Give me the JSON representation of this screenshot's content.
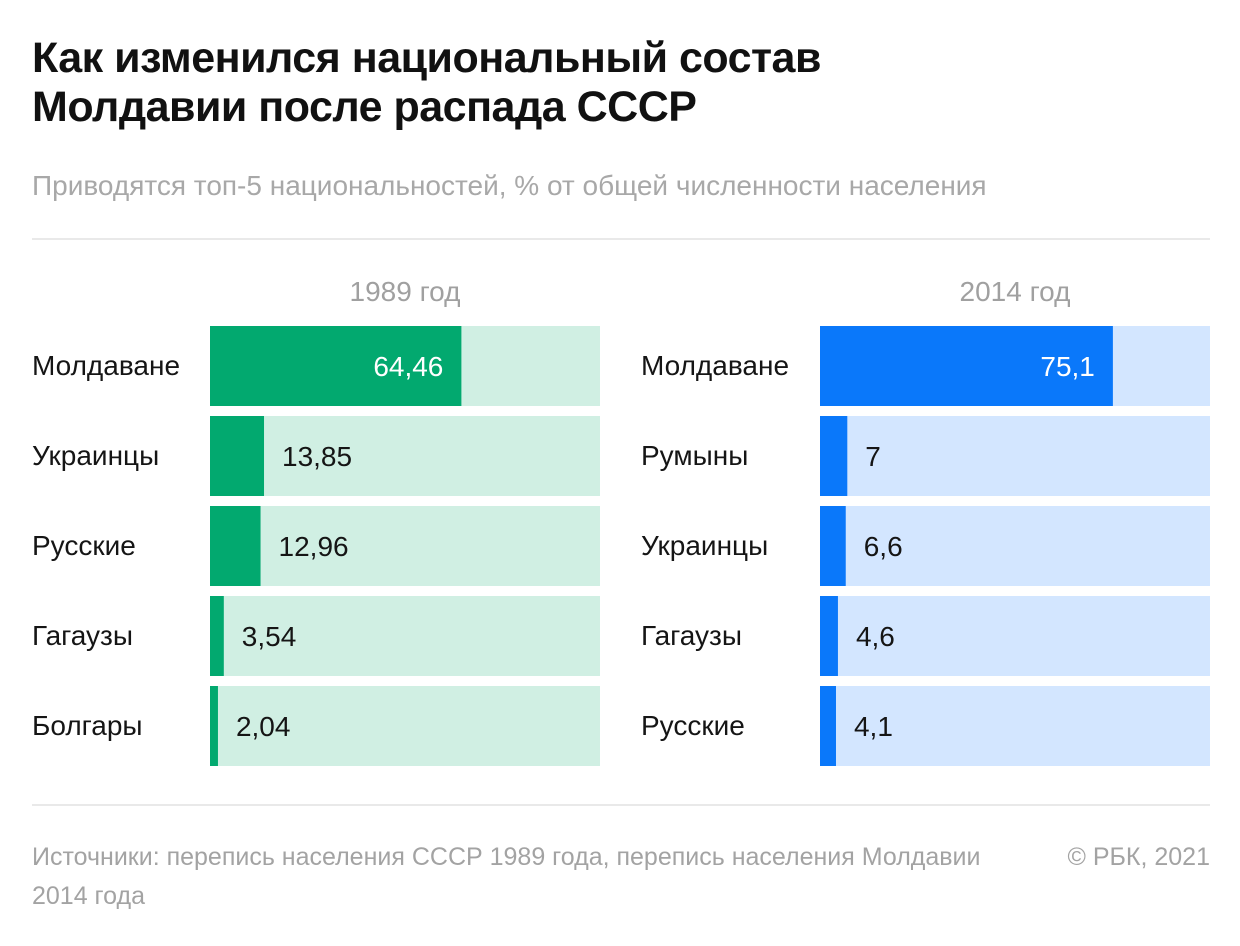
{
  "header": {
    "title_lines": [
      "Как изменился национальный состав",
      "Молдавии после распада СССР"
    ],
    "subtitle": "Приводятся топ-5 национальностей, % от общей численности населения"
  },
  "footer": {
    "source": "Источники: перепись населения СССР 1989 года, перепись населения Молдавии 2014 года",
    "copyright": "© РБК, 2021"
  },
  "colors": {
    "green": "#02a96f",
    "green_track": "#d0efe3",
    "blue": "#0a78fa",
    "blue_track": "#d3e6ff",
    "label_dark": "#151515",
    "label_light": "#ffffff"
  },
  "chart_data": [
    {
      "type": "bar",
      "title": "1989 год",
      "orientation": "horizontal",
      "categories": [
        "Молдаване",
        "Украинцы",
        "Русские",
        "Гагаузы",
        "Болгары"
      ],
      "values": [
        64.46,
        13.85,
        12.96,
        3.54,
        2.04
      ],
      "value_labels": [
        "64,46",
        "13,85",
        "12,96",
        "3,54",
        "2,04"
      ],
      "xlim": [
        0,
        100
      ],
      "unit": "%",
      "bar_color": "#02a96f",
      "track_color": "#d0efe3",
      "grid": false
    },
    {
      "type": "bar",
      "title": "2014 год",
      "orientation": "horizontal",
      "categories": [
        "Молдаване",
        "Румыны",
        "Украинцы",
        "Гагаузы",
        "Русские"
      ],
      "values": [
        75.1,
        7,
        6.6,
        4.6,
        4.1
      ],
      "value_labels": [
        "75,1",
        "7",
        "6,6",
        "4,6",
        "4,1"
      ],
      "xlim": [
        0,
        100
      ],
      "unit": "%",
      "bar_color": "#0a78fa",
      "track_color": "#d3e6ff",
      "grid": false
    }
  ]
}
